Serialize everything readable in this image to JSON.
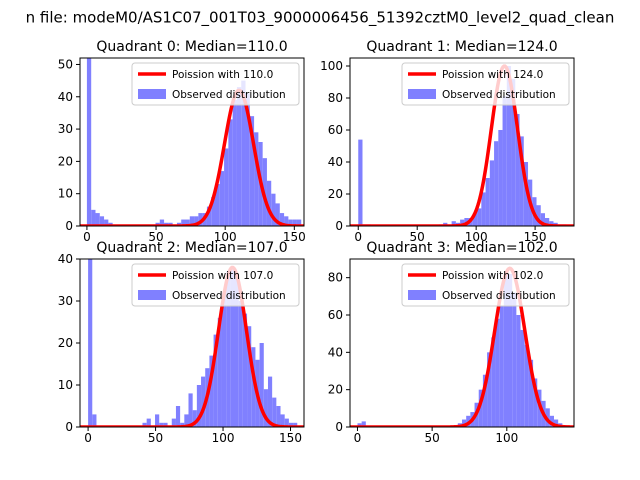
{
  "figure": {
    "suptitle": "n file: modeM0/AS1C07_001T03_9000006456_51392cztM0_level2_quad_clean"
  },
  "colors": {
    "hist": "#8080ff",
    "curve": "#ff0000",
    "axis": "#000000",
    "legend_edge": "#cccccc"
  },
  "chart_data": [
    {
      "type": "bar",
      "title": "Quadrant 0: Median=110.0",
      "xlim": [
        -5,
        157
      ],
      "ylim": [
        0,
        52
      ],
      "xticks": [
        0,
        50,
        100,
        150
      ],
      "yticks": [
        0,
        10,
        20,
        30,
        40,
        50
      ],
      "bin_width": 3.1,
      "hist_x": [
        0,
        3.1,
        6.2,
        9.3,
        12.4,
        15.5,
        18.6,
        21.7,
        24.8,
        27.9,
        31,
        34.1,
        37.2,
        40.3,
        43.4,
        46.5,
        49.6,
        52.7,
        55.8,
        58.9,
        62,
        65.1,
        68.2,
        71.3,
        74.4,
        77.5,
        80.6,
        83.7,
        86.8,
        89.9,
        93,
        96.1,
        99.2,
        102.3,
        105.4,
        108.5,
        111.6,
        114.7,
        117.8,
        120.9,
        124,
        127.1,
        130.2,
        133.3,
        136.4,
        139.5,
        142.6,
        145.7,
        148.8,
        151.9
      ],
      "hist_values": [
        52,
        5,
        4,
        3,
        2,
        1,
        0,
        0,
        0,
        0,
        0,
        0,
        0,
        0,
        0,
        0,
        1,
        2,
        1,
        1,
        0,
        1,
        2,
        2,
        3,
        3,
        4,
        4,
        6,
        9,
        13,
        17,
        24,
        33,
        39,
        43,
        45,
        41,
        34,
        29,
        26,
        21,
        14,
        10,
        7,
        4,
        3,
        2,
        2,
        2
      ],
      "mu": 110.0,
      "peak": 42,
      "legend": {
        "curve": "Poission with 110.0",
        "hist": "Observed distribution"
      }
    },
    {
      "type": "bar",
      "title": "Quadrant 1: Median=124.0",
      "xlim": [
        -7,
        183
      ],
      "ylim": [
        0,
        105
      ],
      "xticks": [
        0,
        50,
        100,
        150
      ],
      "yticks": [
        0,
        20,
        40,
        60,
        80,
        100
      ],
      "bin_width": 3.6,
      "hist_x": [
        0,
        3.6,
        7.2,
        10.8,
        14.4,
        18,
        21.6,
        25.2,
        28.8,
        32.4,
        36,
        39.6,
        43.2,
        46.8,
        50.4,
        54,
        57.6,
        61.2,
        64.8,
        68.4,
        72,
        75.6,
        79.2,
        82.8,
        86.4,
        90,
        93.6,
        97.2,
        100.8,
        104.4,
        108,
        111.6,
        115.2,
        118.8,
        122.4,
        126,
        129.6,
        133.2,
        136.8,
        140.4,
        144,
        147.6,
        151.2,
        154.8,
        158.4,
        162,
        165.6,
        169.2,
        172.8,
        176.4
      ],
      "hist_values": [
        54,
        1,
        1,
        0,
        0,
        0,
        0,
        0,
        0,
        0,
        0,
        0,
        0,
        0,
        0,
        0,
        0,
        0,
        0,
        1,
        2,
        1,
        3,
        2,
        4,
        5,
        5,
        8,
        11,
        21,
        30,
        41,
        53,
        60,
        81,
        100,
        92,
        70,
        56,
        40,
        29,
        18,
        13,
        8,
        5,
        3,
        2,
        1,
        1,
        0
      ],
      "mu": 124.0,
      "peak": 100,
      "legend": {
        "curve": "Poission with 124.0",
        "hist": "Observed distribution"
      }
    },
    {
      "type": "bar",
      "title": "Quadrant 2: Median=107.0",
      "xlim": [
        -6,
        160
      ],
      "ylim": [
        0,
        40
      ],
      "xticks": [
        0,
        50,
        100,
        150
      ],
      "yticks": [
        0,
        10,
        20,
        30,
        40
      ],
      "bin_width": 3.1,
      "hist_x": [
        0,
        3.1,
        6.2,
        9.3,
        12.4,
        15.5,
        18.6,
        21.7,
        24.8,
        27.9,
        31,
        34.1,
        37.2,
        40.3,
        43.4,
        46.5,
        49.6,
        52.7,
        55.8,
        58.9,
        62,
        65.1,
        68.2,
        71.3,
        74.4,
        77.5,
        80.6,
        83.7,
        86.8,
        89.9,
        93,
        96.1,
        99.2,
        102.3,
        105.4,
        108.5,
        111.6,
        114.7,
        117.8,
        120.9,
        124,
        127.1,
        130.2,
        133.3,
        136.4,
        139.5,
        142.6,
        145.7,
        148.8,
        151.9
      ],
      "hist_values": [
        40,
        3,
        0,
        0,
        0,
        0,
        0,
        0,
        0,
        0,
        0,
        0,
        0,
        1,
        2,
        0,
        3,
        1,
        1,
        0,
        2,
        5,
        1,
        3,
        8,
        4,
        10,
        12,
        14,
        17,
        22,
        26,
        32,
        37,
        38,
        36,
        30,
        27,
        24,
        19,
        16,
        20,
        9,
        12,
        7,
        5,
        3,
        2,
        1,
        1
      ],
      "mu": 107.0,
      "peak": 38,
      "legend": {
        "curve": "Poission with 107.0",
        "hist": "Observed distribution"
      }
    },
    {
      "type": "bar",
      "title": "Quadrant 3: Median=102.0",
      "xlim": [
        -5,
        145
      ],
      "ylim": [
        0,
        90
      ],
      "xticks": [
        0,
        50,
        100
      ],
      "yticks": [
        0,
        20,
        40,
        60,
        80
      ],
      "bin_width": 2.8,
      "hist_x": [
        0,
        2.8,
        5.6,
        8.4,
        11.2,
        14,
        16.8,
        19.6,
        22.4,
        25.2,
        28,
        30.8,
        33.6,
        36.4,
        39.2,
        42,
        44.8,
        47.6,
        50.4,
        53.2,
        56,
        58.8,
        61.6,
        64.4,
        67.2,
        70,
        72.8,
        75.6,
        78.4,
        81.2,
        84,
        86.8,
        89.6,
        92.4,
        95.2,
        98,
        100.8,
        103.6,
        106.4,
        109.2,
        112,
        114.8,
        117.6,
        120.4,
        123.2,
        126,
        128.8,
        131.6,
        134.4,
        137.2
      ],
      "hist_values": [
        2,
        3,
        0,
        0,
        0,
        0,
        0,
        0,
        0,
        0,
        0,
        0,
        0,
        0,
        0,
        0,
        0,
        0,
        0,
        0,
        0,
        0,
        0,
        1,
        2,
        4,
        6,
        8,
        13,
        20,
        28,
        40,
        48,
        58,
        65,
        82,
        82,
        72,
        60,
        52,
        44,
        36,
        26,
        20,
        14,
        10,
        6,
        4,
        2,
        1
      ],
      "mu": 102.0,
      "peak": 85,
      "legend": {
        "curve": "Poission with 102.0",
        "hist": "Observed distribution"
      }
    }
  ]
}
